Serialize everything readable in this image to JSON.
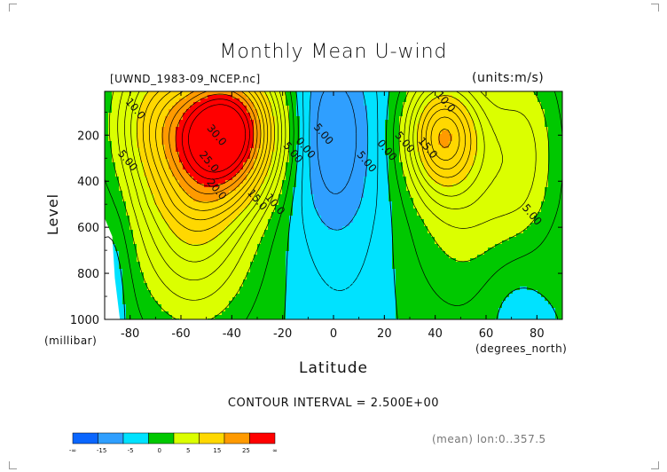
{
  "header": {
    "title": "Monthly Mean U-wind",
    "source": "[UWND_1983-09_NCEP.nc]",
    "units": "(units:m/s)"
  },
  "footer": {
    "interval": "CONTOUR INTERVAL = 2.500E+00",
    "meta": "(mean) lon:0..357.5"
  },
  "chart_data": {
    "type": "heatmap",
    "title": "Monthly Mean U-wind",
    "xlabel": "Latitude",
    "x_units": "(degrees_north)",
    "ylabel": "Level",
    "y_units": "(millibar)",
    "xlim": [
      -90,
      90
    ],
    "ylim": [
      1000,
      10
    ],
    "x_ticks": [
      -80,
      -60,
      -40,
      -20,
      0,
      20,
      40,
      60,
      80
    ],
    "x_tick_labels": [
      "-80",
      "-60",
      "-40",
      "-20",
      "0",
      "20",
      "40",
      "60",
      "80"
    ],
    "y_ticks": [
      200,
      400,
      600,
      800,
      1000
    ],
    "y_tick_labels": [
      "200",
      "400",
      "600",
      "800",
      "1000"
    ],
    "contour_interval": 2.5,
    "contour_labels": [
      {
        "text": "10.0",
        "lat": -79,
        "lev": 95
      },
      {
        "text": "5.00",
        "lat": -82,
        "lev": 320
      },
      {
        "text": "30.0",
        "lat": -47,
        "lev": 210
      },
      {
        "text": "25.0",
        "lat": -50,
        "lev": 325
      },
      {
        "text": "20.0",
        "lat": -47,
        "lev": 445
      },
      {
        "text": "15.0",
        "lat": -31,
        "lev": 490
      },
      {
        "text": "10.0",
        "lat": -24,
        "lev": 510
      },
      {
        "text": "5.00",
        "lat": -17,
        "lev": 285
      },
      {
        "text": "0.00",
        "lat": -12,
        "lev": 265
      },
      {
        "text": "5.00",
        "lat": -5,
        "lev": 205
      },
      {
        "text": "5.00",
        "lat": 12,
        "lev": 325
      },
      {
        "text": "0.00",
        "lat": 20,
        "lev": 275
      },
      {
        "text": "5.00",
        "lat": 27,
        "lev": 240
      },
      {
        "text": "10.0",
        "lat": 43,
        "lev": 65
      },
      {
        "text": "15.0",
        "lat": 36,
        "lev": 265
      },
      {
        "text": "5.00",
        "lat": 77,
        "lev": 555
      }
    ],
    "colorbar": {
      "levels": [
        "-∞",
        "-15",
        "-5",
        "0",
        "5",
        "15",
        "25",
        "∞"
      ],
      "colors": [
        "#0a66ff",
        "#2f9fff",
        "#00e2ff",
        "#00c800",
        "#dbff00",
        "#ffd800",
        "#ff9a00",
        "#ff0000"
      ]
    }
  }
}
